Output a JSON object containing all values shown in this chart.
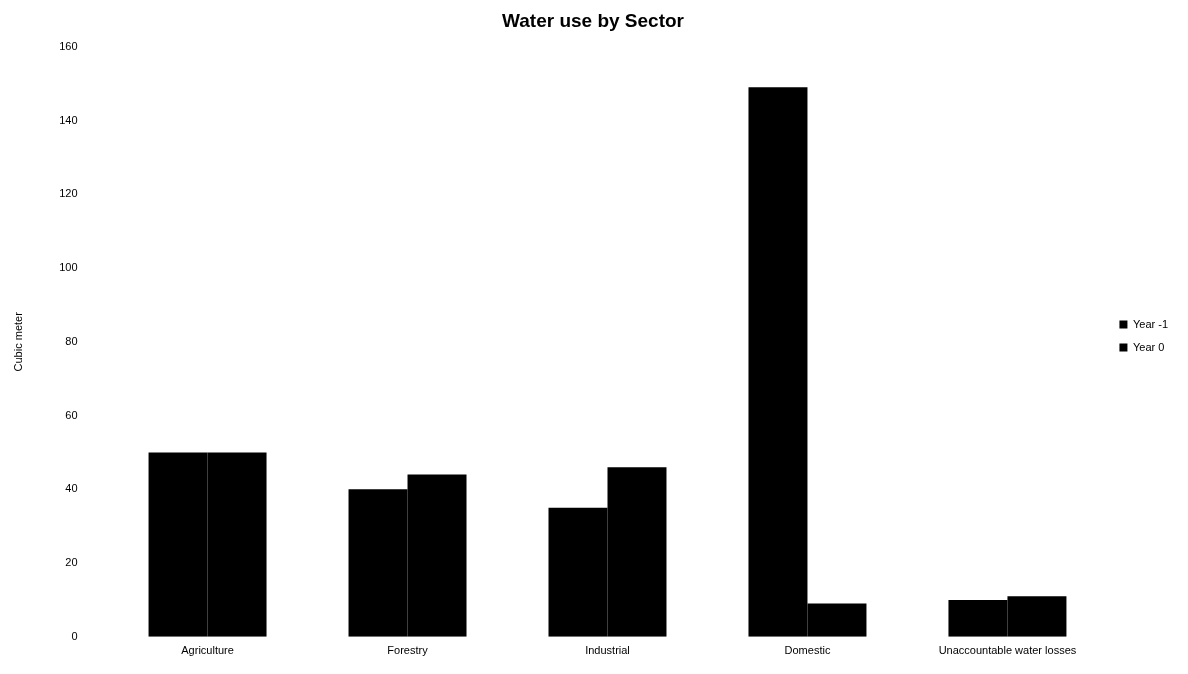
{
  "chart_data": {
    "type": "bar",
    "title": "Water use by Sector",
    "ylabel": "Cubic meter",
    "categories": [
      "Agriculture",
      "Forestry",
      "Industrial",
      "Domestic",
      "Unaccountable water losses"
    ],
    "series": [
      {
        "name": "Year -1",
        "color": "#000000",
        "values": [
          50,
          40,
          35,
          149,
          10
        ]
      },
      {
        "name": "Year 0",
        "color": "#000000",
        "values": [
          50,
          44,
          46,
          9,
          11
        ]
      }
    ],
    "ylim": [
      0,
      160
    ],
    "yticks": [
      0,
      20,
      40,
      60,
      80,
      100,
      120,
      140,
      160
    ],
    "grid": false,
    "legend": "right"
  }
}
